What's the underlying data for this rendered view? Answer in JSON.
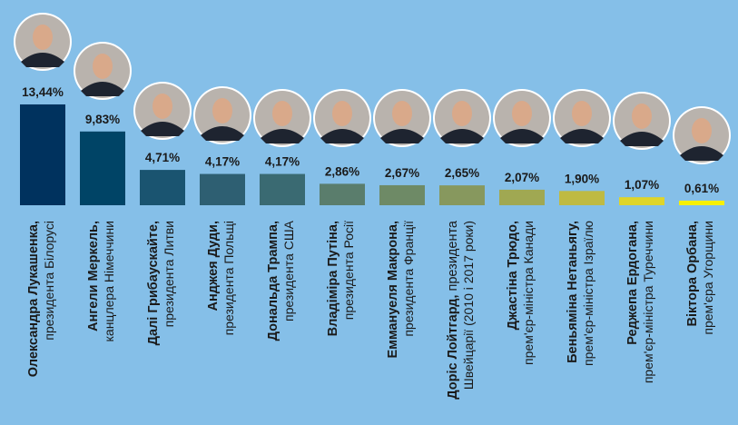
{
  "colors": {
    "background": "#85bfe8",
    "bar_dark": "#00325e",
    "bar_light": "#f5ef00"
  },
  "chart_data": {
    "type": "bar",
    "title": "",
    "xlabel": "",
    "ylabel": "",
    "ylim": [
      0,
      14
    ],
    "grid": false,
    "categories": [
      {
        "name": "Олександра Лукашенка,",
        "title": "президента Білорусі"
      },
      {
        "name": "Ангели Меркель,",
        "title": "канцлера Німеччини"
      },
      {
        "name": "Далі Грибаускайте,",
        "title": "президента Литви"
      },
      {
        "name": "Анджея Дуди,",
        "title": "президента Польщі"
      },
      {
        "name": "Дональда Трампа,",
        "title": "президента США"
      },
      {
        "name": "Владіміра Путіна,",
        "title": "президента Росії"
      },
      {
        "name": "Еммануеля Макрона,",
        "title": "президента Франції"
      },
      {
        "name": "Доріс Лойтгард,",
        "name_suffix": " президента",
        "title": "Швейцарії (2010 і 2017 роки)"
      },
      {
        "name": "Джастіна Трюдо,",
        "title": "прем'єр-міністра Канади"
      },
      {
        "name": "Беньяміна Нетаньягу,",
        "title": "прем'єр-міністра Ізраїлю"
      },
      {
        "name": "Реджепа Ердогана,",
        "title": "прем'єр-міністра Туреччини"
      },
      {
        "name": "Віктора Орбана,",
        "title": "прем'єра Угорщини"
      }
    ],
    "values": [
      13.44,
      9.83,
      4.71,
      4.17,
      4.17,
      2.86,
      2.67,
      2.65,
      2.07,
      1.9,
      1.07,
      0.61
    ],
    "value_labels": [
      "13,44%",
      "9,83%",
      "4,71%",
      "4,17%",
      "4,17%",
      "2,86%",
      "2,67%",
      "2,65%",
      "2,07%",
      "1,90%",
      "1,07%",
      "0,61%"
    ],
    "bar_colors": [
      "#00325e",
      "#004466",
      "#1a5470",
      "#2e5f72",
      "#3a6a72",
      "#5a7d6c",
      "#6e8a66",
      "#87985e",
      "#a0a852",
      "#bfba42",
      "#dfd52a",
      "#f7f000"
    ]
  }
}
